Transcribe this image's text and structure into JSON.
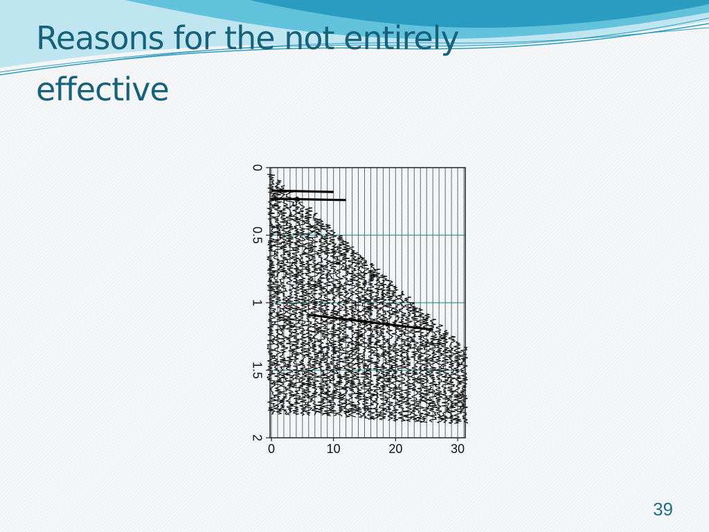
{
  "slide": {
    "title": "Reasons for the not entirely effective",
    "page_number": "39"
  },
  "theme": {
    "title_color": "#17627a",
    "swoosh_light": "#bfe6f0",
    "swoosh_mid": "#62c2dc",
    "swoosh_dark": "#2a9cc0",
    "trace_color": "#000000",
    "gridline_color": "#2aa0a8"
  },
  "chart_data": {
    "type": "seismic-wiggle",
    "title": "",
    "xlabel": "",
    "ylabel": "",
    "x_axis": {
      "range": [
        0,
        31
      ],
      "ticks": [
        0,
        10,
        20,
        30
      ],
      "tick_labels": [
        "0",
        "10",
        "20",
        "30"
      ]
    },
    "y_axis": {
      "range": [
        0,
        2
      ],
      "ticks": [
        0,
        0.5,
        1,
        1.5,
        2
      ],
      "tick_labels": [
        "0",
        "0.5",
        "1",
        "1.5",
        "2"
      ],
      "inverted": true,
      "tick_label_rotation": "vertical"
    },
    "traces": {
      "first": 0,
      "last": 31,
      "count": 32
    },
    "horizontal_gridlines": [
      0.5,
      1,
      1.5
    ],
    "first_break_line": {
      "from": [
        0,
        0.05
      ],
      "to": [
        31,
        1.33
      ]
    },
    "strong_events": [
      {
        "label": "",
        "from": [
          0,
          0.17
        ],
        "to": [
          10,
          0.18
        ]
      },
      {
        "label": "",
        "from": [
          0,
          0.23
        ],
        "to": [
          12,
          0.24
        ]
      },
      {
        "label": "",
        "from": [
          6,
          1.09
        ],
        "to": [
          26,
          1.2
        ]
      }
    ],
    "record_end_time": [
      {
        "x": 0,
        "t": 1.83
      },
      {
        "x": 10,
        "t": 1.84
      },
      {
        "x": 20,
        "t": 1.88
      },
      {
        "x": 31,
        "t": 1.9
      }
    ],
    "legend": "none",
    "grid": true
  }
}
